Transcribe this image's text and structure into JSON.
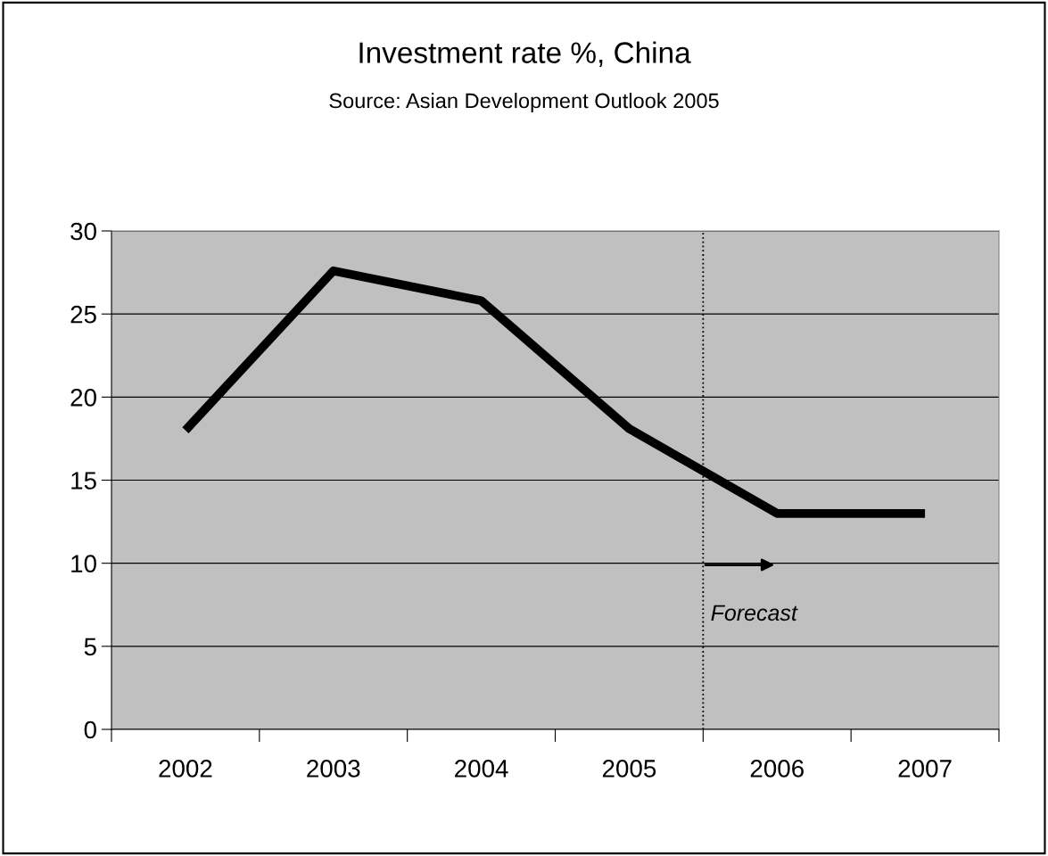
{
  "chart_data": {
    "type": "line",
    "title": "Investment rate %, China",
    "subtitle": "Source: Asian Development Outlook 2005",
    "x": [
      2002,
      2003,
      2004,
      2005,
      2006,
      2007
    ],
    "series": [
      {
        "color": "#000000",
        "values": [
          18,
          27.6,
          25.8,
          18.1,
          13,
          13
        ]
      }
    ],
    "xlim": [
      2001.5,
      2007.5
    ],
    "xticks": [
      {
        "value": 2001.5,
        "label": null
      },
      2002,
      {
        "value": 2002.5,
        "label": null
      },
      2003,
      {
        "value": 2003.5,
        "label": null
      },
      2004,
      {
        "value": 2004.5,
        "label": null
      },
      2005,
      {
        "value": 2005.5,
        "label": null
      },
      2006,
      {
        "value": 2006.5,
        "label": null
      },
      2007,
      {
        "value": 2007.5,
        "label": null
      }
    ],
    "ylim": [
      0,
      30
    ],
    "yticks": [
      0,
      5,
      10,
      15,
      20,
      25,
      30
    ],
    "grid": "y",
    "marker": "none",
    "line_style": "solid",
    "ref_lines": [
      {
        "axis": "x",
        "value": 2005.5,
        "color": "#000000",
        "line_style": "dotted"
      }
    ],
    "annotations": [
      "Forecast"
    ]
  }
}
